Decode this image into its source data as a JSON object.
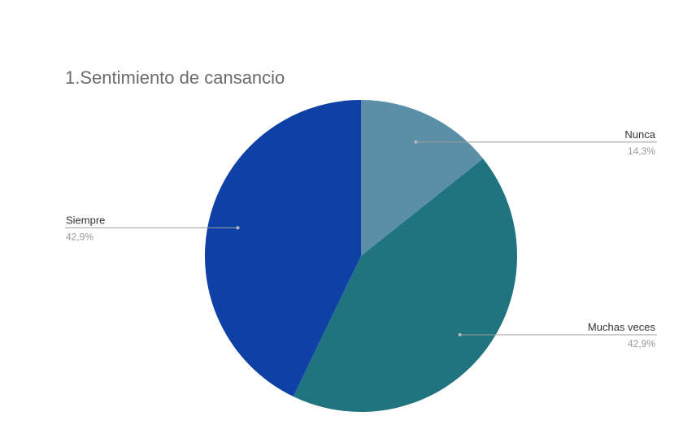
{
  "chart_data": {
    "type": "pie",
    "title": "1.Sentimiento de cansancio",
    "slices": [
      {
        "label": "Nunca",
        "value": 14.3,
        "value_label": "14,3%",
        "color": "#5b8fa8"
      },
      {
        "label": "Muchas veces",
        "value": 42.9,
        "value_label": "42,9%",
        "color": "#1f7480"
      },
      {
        "label": "Siempre",
        "value": 42.9,
        "value_label": "42,9%",
        "color": "#0e40a6"
      }
    ],
    "start_angle": "12 o'clock",
    "direction": "clockwise"
  }
}
